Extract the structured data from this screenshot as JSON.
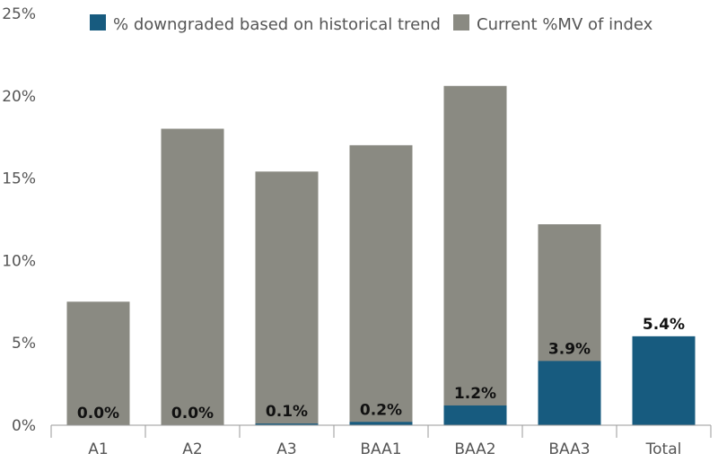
{
  "chart_data": {
    "type": "bar",
    "categories": [
      "A1",
      "A2",
      "A3",
      "BAA1",
      "BAA2",
      "BAA3",
      "Total"
    ],
    "series": [
      {
        "name": "% downgraded based on historical trend",
        "values": [
          0.0,
          0.0,
          0.1,
          0.2,
          1.2,
          3.9,
          5.4
        ],
        "labels": [
          "0.0%",
          "0.0%",
          "0.1%",
          "0.2%",
          "1.2%",
          "3.9%",
          "5.4%"
        ],
        "color": "#175B7F"
      },
      {
        "name": "Current %MV of index",
        "values": [
          7.5,
          18.0,
          15.4,
          17.0,
          20.6,
          12.2,
          null
        ],
        "color": "#8A8A82"
      }
    ],
    "overlay": true,
    "ylim": [
      0,
      25
    ],
    "yticks": [
      0,
      5,
      10,
      15,
      20,
      25
    ],
    "ytick_labels": [
      "0%",
      "5%",
      "10%",
      "15%",
      "20%",
      "25%"
    ],
    "grid": false,
    "legend_position": "top"
  }
}
